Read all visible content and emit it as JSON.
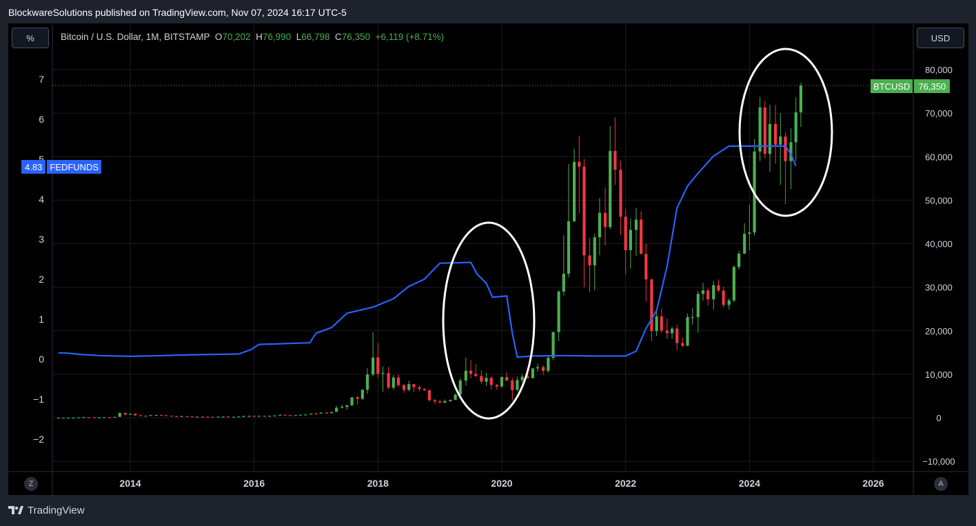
{
  "header": {
    "published_text": "BlockwareSolutions published on TradingView.com, Nov 07, 2024 16:17 UTC-5"
  },
  "toolbar": {
    "percent_label": "%",
    "currency_label": "USD",
    "z_label": "Z",
    "a_label": "A"
  },
  "symbol": {
    "name": "Bitcoin / U.S. Dollar, 1M, BITSTAMP",
    "open_label": "O",
    "open": "70,202",
    "high_label": "H",
    "high": "76,990",
    "low_label": "L",
    "low": "66,798",
    "close_label": "C",
    "close": "76,350",
    "change": "+6,119 (+8.71%)"
  },
  "badges": {
    "fed_value": "4.83",
    "fed_name": "FEDFUNDS",
    "btc_name": "BTCUSD",
    "btc_value": "76,350"
  },
  "footer": {
    "brand": "TradingView"
  },
  "colors": {
    "up": "#4caf50",
    "down": "#f23645",
    "fed_line": "#2962ff",
    "background": "#000000",
    "grid": "#1a1d24",
    "annotation": "#ffffff"
  },
  "chart_data": {
    "type": "candlestick+line",
    "x_ticks": [
      "2014",
      "2016",
      "2018",
      "2020",
      "2022",
      "2024",
      "2026"
    ],
    "left_axis_ticks": [
      "7",
      "6",
      "5",
      "4",
      "3",
      "2",
      "1",
      "0",
      "−1",
      "−2"
    ],
    "right_axis_ticks": [
      "80,000",
      "70,000",
      "60,000",
      "50,000",
      "40,000",
      "30,000",
      "20,000",
      "10,000",
      "0",
      "−10,000"
    ],
    "left_ylim": [
      -2.5,
      7.5
    ],
    "right_ylim": [
      -10000,
      80000
    ],
    "x_range": [
      2012.75,
      2026.85
    ],
    "fedfunds": {
      "name": "FEDFUNDS",
      "points": [
        [
          2012.84,
          0.16
        ],
        [
          2013.0,
          0.15
        ],
        [
          2013.17,
          0.12
        ],
        [
          2013.5,
          0.09
        ],
        [
          2014.0,
          0.07
        ],
        [
          2014.5,
          0.09
        ],
        [
          2015.0,
          0.11
        ],
        [
          2015.75,
          0.13
        ],
        [
          2015.95,
          0.24
        ],
        [
          2016.08,
          0.37
        ],
        [
          2016.3,
          0.38
        ],
        [
          2016.9,
          0.41
        ],
        [
          2017.0,
          0.65
        ],
        [
          2017.25,
          0.79
        ],
        [
          2017.5,
          1.15
        ],
        [
          2017.92,
          1.3
        ],
        [
          2018.25,
          1.51
        ],
        [
          2018.5,
          1.82
        ],
        [
          2018.75,
          2.0
        ],
        [
          2019.0,
          2.4
        ],
        [
          2019.5,
          2.42
        ],
        [
          2019.6,
          2.13
        ],
        [
          2019.75,
          1.9
        ],
        [
          2019.85,
          1.55
        ],
        [
          2020.08,
          1.58
        ],
        [
          2020.17,
          0.65
        ],
        [
          2020.25,
          0.05
        ],
        [
          2020.5,
          0.08
        ],
        [
          2021.0,
          0.09
        ],
        [
          2021.5,
          0.08
        ],
        [
          2022.0,
          0.08
        ],
        [
          2022.17,
          0.2
        ],
        [
          2022.33,
          0.77
        ],
        [
          2022.5,
          1.21
        ],
        [
          2022.67,
          2.33
        ],
        [
          2022.83,
          3.78
        ],
        [
          2023.0,
          4.33
        ],
        [
          2023.17,
          4.65
        ],
        [
          2023.42,
          5.08
        ],
        [
          2023.67,
          5.33
        ],
        [
          2024.58,
          5.33
        ],
        [
          2024.67,
          5.13
        ],
        [
          2024.75,
          4.83
        ]
      ]
    },
    "btcusd_monthly": [
      [
        2012.84,
        10.6,
        12.4,
        10.0,
        12.4
      ],
      [
        2012.92,
        12.4,
        13.5,
        12.2,
        13.5
      ],
      [
        2013.0,
        13.5,
        20.4,
        13.3,
        20.4
      ],
      [
        2013.08,
        20.4,
        34.5,
        19.1,
        33.4
      ],
      [
        2013.17,
        33.4,
        147,
        33.4,
        93
      ],
      [
        2013.25,
        93,
        266,
        50,
        139
      ],
      [
        2013.33,
        139,
        140,
        91,
        128
      ],
      [
        2013.42,
        128,
        129,
        89,
        97
      ],
      [
        2013.5,
        97,
        110,
        65,
        106
      ],
      [
        2013.58,
        106,
        141,
        96,
        141
      ],
      [
        2013.67,
        141,
        145,
        105,
        125
      ],
      [
        2013.75,
        125,
        210,
        110,
        204
      ],
      [
        2013.83,
        204,
        1163,
        200,
        1129
      ],
      [
        2013.92,
        1129,
        1132,
        522,
        754
      ],
      [
        2014.0,
        754,
        1022,
        740,
        939
      ],
      [
        2014.08,
        939,
        939,
        400,
        573
      ],
      [
        2014.17,
        573,
        713,
        450,
        459
      ],
      [
        2014.25,
        459,
        535,
        340,
        445
      ],
      [
        2014.33,
        445,
        631,
        420,
        630
      ],
      [
        2014.42,
        630,
        677,
        555,
        640
      ],
      [
        2014.5,
        640,
        660,
        570,
        588
      ],
      [
        2014.58,
        588,
        602,
        440,
        478
      ],
      [
        2014.67,
        478,
        492,
        370,
        386
      ],
      [
        2014.75,
        386,
        419,
        275,
        337
      ],
      [
        2014.83,
        337,
        458,
        306,
        378
      ],
      [
        2014.92,
        378,
        382,
        300,
        319
      ],
      [
        2015.0,
        319,
        320,
        166,
        217
      ],
      [
        2015.08,
        217,
        263,
        213,
        254
      ],
      [
        2015.17,
        254,
        300,
        235,
        246
      ],
      [
        2015.25,
        246,
        262,
        216,
        236
      ],
      [
        2015.33,
        236,
        247,
        226,
        230
      ],
      [
        2015.42,
        230,
        266,
        221,
        264
      ],
      [
        2015.5,
        264,
        317,
        255,
        284
      ],
      [
        2015.58,
        284,
        287,
        198,
        231
      ],
      [
        2015.67,
        231,
        245,
        222,
        236
      ],
      [
        2015.75,
        236,
        316,
        235,
        313
      ],
      [
        2015.83,
        313,
        502,
        313,
        377
      ],
      [
        2015.92,
        377,
        467,
        350,
        430
      ],
      [
        2016.0,
        430,
        463,
        350,
        369
      ],
      [
        2016.08,
        369,
        447,
        365,
        438
      ],
      [
        2016.17,
        438,
        440,
        395,
        416
      ],
      [
        2016.25,
        416,
        467,
        413,
        448
      ],
      [
        2016.33,
        448,
        548,
        440,
        531
      ],
      [
        2016.42,
        531,
        780,
        525,
        673
      ],
      [
        2016.5,
        673,
        703,
        470,
        624
      ],
      [
        2016.58,
        624,
        626,
        480,
        575
      ],
      [
        2016.67,
        575,
        630,
        566,
        608
      ],
      [
        2016.75,
        608,
        720,
        607,
        698
      ],
      [
        2016.83,
        698,
        759,
        680,
        742
      ],
      [
        2016.92,
        742,
        979,
        740,
        966
      ],
      [
        2017.0,
        966,
        1150,
        750,
        965
      ],
      [
        2017.08,
        965,
        1200,
        920,
        1190
      ],
      [
        2017.17,
        1190,
        1290,
        891,
        1080
      ],
      [
        2017.25,
        1080,
        1350,
        1080,
        1348
      ],
      [
        2017.33,
        1348,
        2760,
        1348,
        2300
      ],
      [
        2017.42,
        2300,
        3000,
        2100,
        2500
      ],
      [
        2017.5,
        2500,
        2950,
        1830,
        2875
      ],
      [
        2017.58,
        2875,
        4750,
        2700,
        4700
      ],
      [
        2017.67,
        4700,
        5000,
        2950,
        4350
      ],
      [
        2017.75,
        4350,
        6480,
        4150,
        6450
      ],
      [
        2017.83,
        6450,
        11400,
        5500,
        9950
      ],
      [
        2017.92,
        9950,
        19666,
        9500,
        13850
      ],
      [
        2018.0,
        13850,
        17200,
        9200,
        10100
      ],
      [
        2018.08,
        10100,
        11800,
        6000,
        10300
      ],
      [
        2018.17,
        10300,
        11700,
        6600,
        6930
      ],
      [
        2018.25,
        6930,
        9800,
        6430,
        9250
      ],
      [
        2018.33,
        9250,
        9950,
        7050,
        7500
      ],
      [
        2018.42,
        7500,
        7750,
        5750,
        6400
      ],
      [
        2018.5,
        6400,
        8500,
        6070,
        7730
      ],
      [
        2018.58,
        7730,
        7750,
        5880,
        7030
      ],
      [
        2018.67,
        7030,
        7400,
        6100,
        6625
      ],
      [
        2018.75,
        6625,
        6800,
        6200,
        6300
      ],
      [
        2018.83,
        6300,
        6550,
        3650,
        4040
      ],
      [
        2018.92,
        4040,
        4300,
        3150,
        3740
      ],
      [
        2019.0,
        3740,
        4100,
        3350,
        3460
      ],
      [
        2019.08,
        3460,
        4200,
        3400,
        3820
      ],
      [
        2019.17,
        3820,
        4180,
        3700,
        4100
      ],
      [
        2019.25,
        4100,
        5600,
        4080,
        5330
      ],
      [
        2019.33,
        5330,
        9100,
        5320,
        8570
      ],
      [
        2019.42,
        8570,
        13900,
        7450,
        10800
      ],
      [
        2019.5,
        10800,
        13200,
        9050,
        10100
      ],
      [
        2019.58,
        10100,
        12350,
        9400,
        9600
      ],
      [
        2019.67,
        9600,
        10950,
        7700,
        8300
      ],
      [
        2019.75,
        8300,
        10350,
        7300,
        9150
      ],
      [
        2019.83,
        9150,
        9500,
        6500,
        7550
      ],
      [
        2019.92,
        7550,
        7750,
        6430,
        7200
      ],
      [
        2020.0,
        7200,
        9550,
        6900,
        9350
      ],
      [
        2020.08,
        9350,
        10500,
        8450,
        8550
      ],
      [
        2020.17,
        8550,
        9180,
        3850,
        6400
      ],
      [
        2020.25,
        6400,
        9450,
        6150,
        8650
      ],
      [
        2020.33,
        8650,
        10080,
        8100,
        9450
      ],
      [
        2020.42,
        9450,
        10400,
        8950,
        9150
      ],
      [
        2020.5,
        9150,
        11450,
        8950,
        11350
      ],
      [
        2020.58,
        11350,
        12480,
        10550,
        11650
      ],
      [
        2020.67,
        11650,
        12100,
        9850,
        10780
      ],
      [
        2020.75,
        10780,
        14100,
        10400,
        13800
      ],
      [
        2020.83,
        13800,
        19500,
        13200,
        19700
      ],
      [
        2020.92,
        19700,
        29300,
        17600,
        28990
      ],
      [
        2021.0,
        28990,
        41950,
        28100,
        33100
      ],
      [
        2021.08,
        33100,
        58350,
        32300,
        45150
      ],
      [
        2021.17,
        45150,
        61800,
        44950,
        58800
      ],
      [
        2021.25,
        58800,
        64850,
        47050,
        57700
      ],
      [
        2021.33,
        57700,
        59500,
        30000,
        37300
      ],
      [
        2021.42,
        37300,
        41300,
        28800,
        35040
      ],
      [
        2021.5,
        35040,
        42300,
        29300,
        41460
      ],
      [
        2021.58,
        41460,
        50500,
        37330,
        47100
      ],
      [
        2021.67,
        47100,
        52900,
        39600,
        43820
      ],
      [
        2021.75,
        43820,
        66999,
        43290,
        61320
      ],
      [
        2021.83,
        61320,
        69000,
        53500,
        57000
      ],
      [
        2021.92,
        57000,
        59100,
        42000,
        46200
      ],
      [
        2022.0,
        46200,
        47990,
        32950,
        38500
      ],
      [
        2022.08,
        38500,
        45800,
        34300,
        43180
      ],
      [
        2022.17,
        43180,
        48200,
        37150,
        45530
      ],
      [
        2022.25,
        45530,
        47450,
        37600,
        37640
      ],
      [
        2022.33,
        37640,
        40000,
        26700,
        31790
      ],
      [
        2022.42,
        31790,
        31950,
        17600,
        19930
      ],
      [
        2022.5,
        19930,
        24650,
        18800,
        23300
      ],
      [
        2022.58,
        23300,
        25200,
        19550,
        20050
      ],
      [
        2022.67,
        20050,
        22800,
        18150,
        19420
      ],
      [
        2022.75,
        19420,
        20950,
        18150,
        20490
      ],
      [
        2022.83,
        20490,
        21480,
        15480,
        17160
      ],
      [
        2022.92,
        17160,
        18390,
        16260,
        16540
      ],
      [
        2023.0,
        16540,
        23960,
        16500,
        23130
      ],
      [
        2023.08,
        23130,
        25250,
        21350,
        23140
      ],
      [
        2023.17,
        23140,
        29200,
        19550,
        28460
      ],
      [
        2023.25,
        28460,
        31000,
        26930,
        29250
      ],
      [
        2023.33,
        29250,
        29820,
        25810,
        27210
      ],
      [
        2023.42,
        27210,
        31430,
        24800,
        30470
      ],
      [
        2023.5,
        30470,
        31800,
        28900,
        29230
      ],
      [
        2023.58,
        29230,
        30170,
        25400,
        25930
      ],
      [
        2023.67,
        25930,
        27480,
        24900,
        26970
      ],
      [
        2023.75,
        26970,
        35000,
        26540,
        34640
      ],
      [
        2023.83,
        34640,
        38400,
        34080,
        37720
      ],
      [
        2023.92,
        37720,
        44700,
        37630,
        42270
      ],
      [
        2024.0,
        42270,
        48970,
        38500,
        42580
      ],
      [
        2024.08,
        42580,
        64000,
        41880,
        61190
      ],
      [
        2024.17,
        61190,
        73750,
        59000,
        71300
      ],
      [
        2024.25,
        71300,
        72800,
        59600,
        60640
      ],
      [
        2024.33,
        60640,
        71950,
        56500,
        67520
      ],
      [
        2024.42,
        67520,
        71950,
        58400,
        62750
      ],
      [
        2024.5,
        62750,
        70000,
        53500,
        64630
      ],
      [
        2024.58,
        64630,
        65650,
        49000,
        58970
      ],
      [
        2024.67,
        58970,
        66500,
        52550,
        63300
      ],
      [
        2024.75,
        63300,
        73600,
        58900,
        70200
      ],
      [
        2024.83,
        70202,
        76990,
        66798,
        76350
      ]
    ],
    "annotations": [
      {
        "type": "ellipse",
        "note": "around 2019.5-2020.3"
      },
      {
        "type": "ellipse",
        "note": "around 2024.0-2024.9"
      }
    ]
  }
}
